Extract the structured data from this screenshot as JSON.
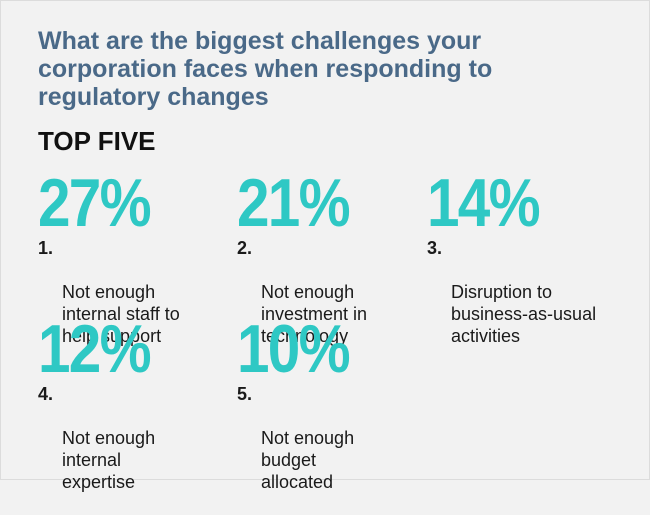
{
  "title": "What are the biggest challenges your\ncorporation faces when responding to\nregulatory changes",
  "subtitle": "TOP FIVE",
  "accent_color": "#2ec8c4",
  "title_color": "#4a6988",
  "chart_data": {
    "type": "table",
    "title": "What are the biggest challenges your corporation faces when responding to regulatory changes",
    "subtitle": "TOP FIVE",
    "items": [
      {
        "rank": "1.",
        "value": "27%",
        "percent": 27,
        "label": "Not enough\ninternal staff to\nhelp support"
      },
      {
        "rank": "2.",
        "value": "21%",
        "percent": 21,
        "label": "Not enough\ninvestment in\ntechnology"
      },
      {
        "rank": "3.",
        "value": "14%",
        "percent": 14,
        "label": "Disruption to\nbusiness-as-usual\nactivities"
      },
      {
        "rank": "4.",
        "value": "12%",
        "percent": 12,
        "label": "Not enough\ninternal\nexpertise"
      },
      {
        "rank": "5.",
        "value": "10%",
        "percent": 10,
        "label": "Not enough\nbudget\nallocated"
      }
    ]
  }
}
